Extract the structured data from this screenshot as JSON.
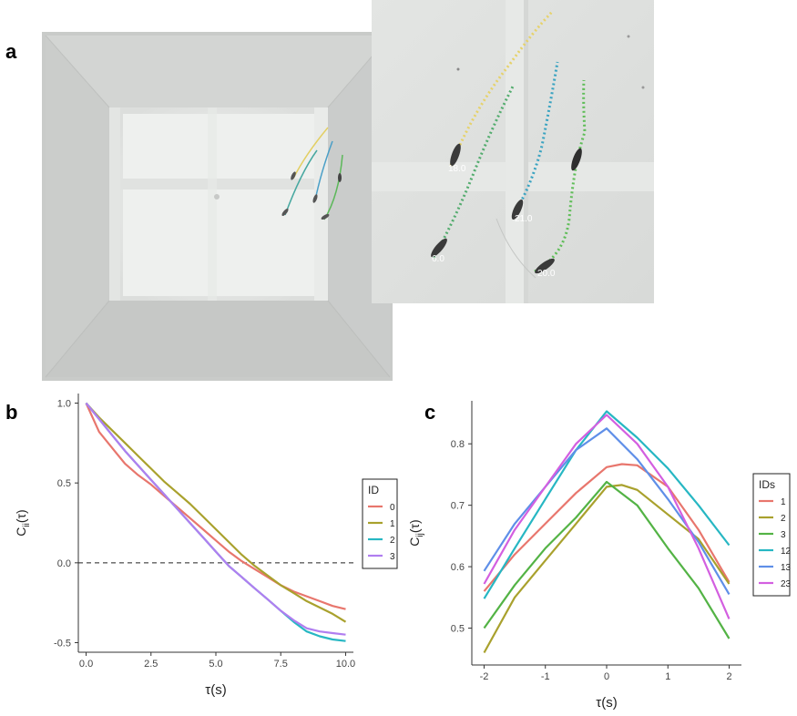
{
  "panels": {
    "a": {
      "letter": "a",
      "track_labels": [
        "18.0",
        "21.0",
        "6.0",
        "20.0"
      ]
    },
    "b": {
      "letter": "b"
    },
    "c": {
      "letter": "c"
    }
  },
  "colors": {
    "red": "#e8766d",
    "olive": "#a9a12d",
    "green": "#53b345",
    "cyan": "#27b7c3",
    "blue": "#5f8fe8",
    "magenta": "#d35fe0",
    "purple": "#b07ef0",
    "yellow": "#e6d26a"
  },
  "chart_data": [
    {
      "type": "line",
      "xlabel": "τ(s)",
      "ylabel_main": "C",
      "ylabel_sub": "ii",
      "ylabel_tail": "(τ)",
      "xlim": [
        -0.3,
        10.3
      ],
      "ylim": [
        -0.56,
        1.06
      ],
      "x_ticks": [
        0.0,
        2.5,
        5.0,
        7.5,
        10.0
      ],
      "x_tick_labels": [
        "0.0",
        "2.5",
        "5.0",
        "7.5",
        "10.0"
      ],
      "y_ticks": [
        -0.5,
        0.0,
        0.5,
        1.0
      ],
      "y_tick_labels": [
        "-0.5",
        "0.0",
        "0.5",
        "1.0"
      ],
      "reference_line": {
        "y": 0.0,
        "style": "dashed"
      },
      "legend_title": "ID",
      "legend_position": "right",
      "series": [
        {
          "name": "0",
          "color": "#e8766d",
          "x": [
            0,
            0.5,
            1,
            1.5,
            2,
            2.5,
            3,
            3.5,
            4,
            4.5,
            5,
            5.5,
            6,
            6.5,
            7,
            7.5,
            8,
            8.5,
            9,
            9.5,
            10
          ],
          "y": [
            1.0,
            0.82,
            0.72,
            0.62,
            0.55,
            0.49,
            0.42,
            0.35,
            0.28,
            0.21,
            0.14,
            0.07,
            0.01,
            -0.04,
            -0.09,
            -0.14,
            -0.18,
            -0.21,
            -0.24,
            -0.27,
            -0.29
          ]
        },
        {
          "name": "1",
          "color": "#a9a12d",
          "x": [
            0,
            0.5,
            1,
            1.5,
            2,
            2.5,
            3,
            3.5,
            4,
            4.5,
            5,
            5.5,
            6,
            6.5,
            7,
            7.5,
            8,
            8.5,
            9,
            9.5,
            10
          ],
          "y": [
            1.0,
            0.91,
            0.83,
            0.75,
            0.67,
            0.59,
            0.51,
            0.44,
            0.37,
            0.29,
            0.21,
            0.13,
            0.05,
            -0.02,
            -0.08,
            -0.14,
            -0.19,
            -0.24,
            -0.28,
            -0.32,
            -0.37
          ]
        },
        {
          "name": "2",
          "color": "#27b7c3",
          "x": [
            0,
            0.5,
            1,
            1.5,
            2,
            2.5,
            3,
            3.5,
            4,
            4.5,
            5,
            5.5,
            6,
            6.5,
            7,
            7.5,
            8,
            8.5,
            9,
            9.5,
            10
          ],
          "y": [
            1.0,
            0.9,
            0.8,
            0.7,
            0.61,
            0.52,
            0.43,
            0.34,
            0.25,
            0.16,
            0.07,
            -0.02,
            -0.09,
            -0.16,
            -0.23,
            -0.3,
            -0.37,
            -0.43,
            -0.46,
            -0.48,
            -0.49
          ]
        },
        {
          "name": "3",
          "color": "#b07ef0",
          "x": [
            0,
            0.5,
            1,
            1.5,
            2,
            2.5,
            3,
            3.5,
            4,
            4.5,
            5,
            5.5,
            6,
            6.5,
            7,
            7.5,
            8,
            8.5,
            9,
            9.5,
            10
          ],
          "y": [
            1.0,
            0.9,
            0.8,
            0.7,
            0.61,
            0.52,
            0.43,
            0.34,
            0.25,
            0.16,
            0.07,
            -0.02,
            -0.09,
            -0.16,
            -0.23,
            -0.3,
            -0.36,
            -0.41,
            -0.43,
            -0.44,
            -0.45
          ]
        }
      ]
    },
    {
      "type": "line",
      "xlabel": "τ(s)",
      "ylabel_main": "C",
      "ylabel_sub": "ij",
      "ylabel_tail": "(τ)",
      "xlim": [
        -2.2,
        2.2
      ],
      "ylim": [
        0.44,
        0.87
      ],
      "x_ticks": [
        -2,
        -1,
        0,
        1,
        2
      ],
      "x_tick_labels": [
        "-2",
        "-1",
        "0",
        "1",
        "2"
      ],
      "y_ticks": [
        0.5,
        0.6,
        0.7,
        0.8
      ],
      "y_tick_labels": [
        "0.5",
        "0.6",
        "0.7",
        "0.8"
      ],
      "legend_title": "IDs",
      "legend_position": "right",
      "series": [
        {
          "name": "1",
          "color": "#e8766d",
          "x": [
            -2,
            -1.5,
            -1,
            -0.5,
            0,
            0.25,
            0.5,
            1,
            1.5,
            2
          ],
          "y": [
            0.56,
            0.62,
            0.67,
            0.72,
            0.762,
            0.767,
            0.765,
            0.73,
            0.66,
            0.575
          ]
        },
        {
          "name": "2",
          "color": "#a9a12d",
          "x": [
            -2,
            -1.5,
            -1,
            -0.5,
            0,
            0.25,
            0.5,
            1,
            1.5,
            2
          ],
          "y": [
            0.46,
            0.55,
            0.61,
            0.67,
            0.73,
            0.733,
            0.725,
            0.685,
            0.645,
            0.572
          ]
        },
        {
          "name": "3",
          "color": "#53b345",
          "x": [
            -2,
            -1.5,
            -1,
            -0.5,
            0,
            0.5,
            1,
            1.5,
            2
          ],
          "y": [
            0.5,
            0.57,
            0.63,
            0.68,
            0.738,
            0.7,
            0.63,
            0.565,
            0.483
          ]
        },
        {
          "name": "12",
          "color": "#27b7c3",
          "x": [
            -2,
            -1.5,
            -1,
            -0.5,
            0,
            0.5,
            1,
            1.5,
            2
          ],
          "y": [
            0.548,
            0.63,
            0.71,
            0.79,
            0.853,
            0.81,
            0.76,
            0.7,
            0.635
          ]
        },
        {
          "name": "13",
          "color": "#5f8fe8",
          "x": [
            -2,
            -1.5,
            -1,
            -0.5,
            0,
            0.5,
            1,
            1.5,
            2
          ],
          "y": [
            0.593,
            0.67,
            0.73,
            0.79,
            0.825,
            0.775,
            0.71,
            0.64,
            0.555
          ]
        },
        {
          "name": "23",
          "color": "#d35fe0",
          "x": [
            -2,
            -1.5,
            -1,
            -0.5,
            0,
            0.5,
            1,
            1.5,
            2
          ],
          "y": [
            0.572,
            0.66,
            0.73,
            0.8,
            0.847,
            0.8,
            0.73,
            0.63,
            0.515
          ]
        }
      ]
    }
  ]
}
